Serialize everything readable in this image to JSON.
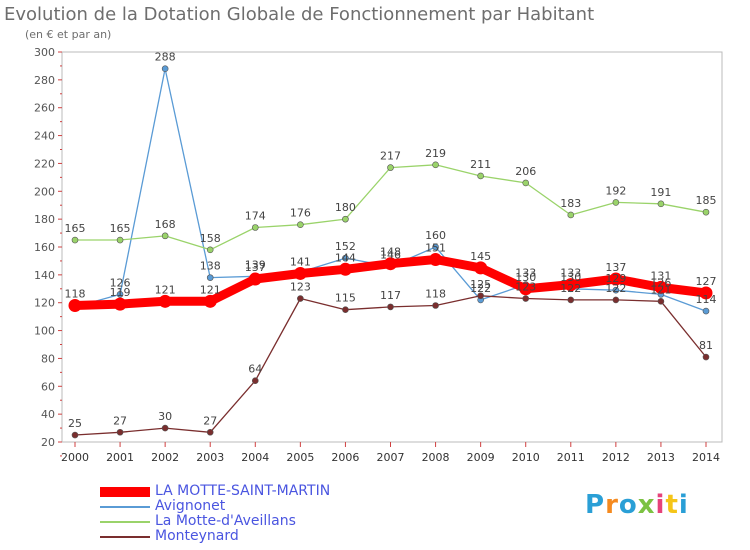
{
  "header": {
    "title": "Evolution de la Dotation Globale de Fonctionnement par Habitant",
    "subtitle": "(en € et par an)"
  },
  "logo": {
    "text": "Proxiti",
    "colors": [
      "#2a9fd6",
      "#f58a1f",
      "#2a9fd6",
      "#7cc242",
      "#e6427a",
      "#f5c518",
      "#2a9fd6"
    ]
  },
  "chart_data": {
    "type": "line",
    "x": [
      "2000",
      "2001",
      "2002",
      "2003",
      "2004",
      "2005",
      "2006",
      "2007",
      "2008",
      "2009",
      "2010",
      "2011",
      "2012",
      "2013",
      "2014"
    ],
    "ylim": [
      20,
      300
    ],
    "yticks": [
      20,
      40,
      60,
      80,
      100,
      120,
      140,
      160,
      180,
      200,
      220,
      240,
      260,
      280,
      300
    ],
    "grid": false,
    "legend_position": "bottom-left",
    "series": [
      {
        "name": "LA MOTTE-SAINT-MARTIN",
        "color": "#ff0000",
        "highlight": true,
        "values": [
          118,
          119,
          121,
          121,
          137,
          141,
          144,
          148,
          151,
          145,
          130,
          133,
          137,
          131,
          127
        ],
        "labels": [
          "118",
          "119",
          "121",
          "121",
          "137",
          "141",
          "144",
          "148",
          "151",
          "145",
          "130",
          "133",
          "137",
          "131",
          "127"
        ]
      },
      {
        "name": "Avignonet",
        "color": "#5a9bd5",
        "highlight": false,
        "values": [
          117,
          126,
          288,
          138,
          139,
          142,
          152,
          146,
          160,
          122,
          133,
          130,
          129,
          126,
          114
        ],
        "labels": [
          "",
          "126",
          "288",
          "138",
          "139",
          "",
          "152",
          "146",
          "160",
          "122",
          "133",
          "130",
          "129",
          "126",
          "114"
        ]
      },
      {
        "name": "La Motte-d'Aveillans",
        "color": "#9ad36a",
        "highlight": false,
        "values": [
          165,
          165,
          168,
          158,
          174,
          176,
          180,
          217,
          219,
          211,
          206,
          183,
          192,
          191,
          185
        ],
        "labels": [
          "165",
          "165",
          "168",
          "158",
          "174",
          "176",
          "180",
          "217",
          "219",
          "211",
          "206",
          "183",
          "192",
          "191",
          "185"
        ]
      },
      {
        "name": "Monteynard",
        "color": "#7a2e2e",
        "highlight": false,
        "values": [
          25,
          27,
          30,
          27,
          64,
          123,
          115,
          117,
          118,
          125,
          123,
          122,
          122,
          121,
          81
        ],
        "labels": [
          "25",
          "27",
          "30",
          "27",
          "64",
          "123",
          "115",
          "117",
          "118",
          "125",
          "123",
          "122",
          "122",
          "121",
          "81"
        ]
      }
    ]
  }
}
